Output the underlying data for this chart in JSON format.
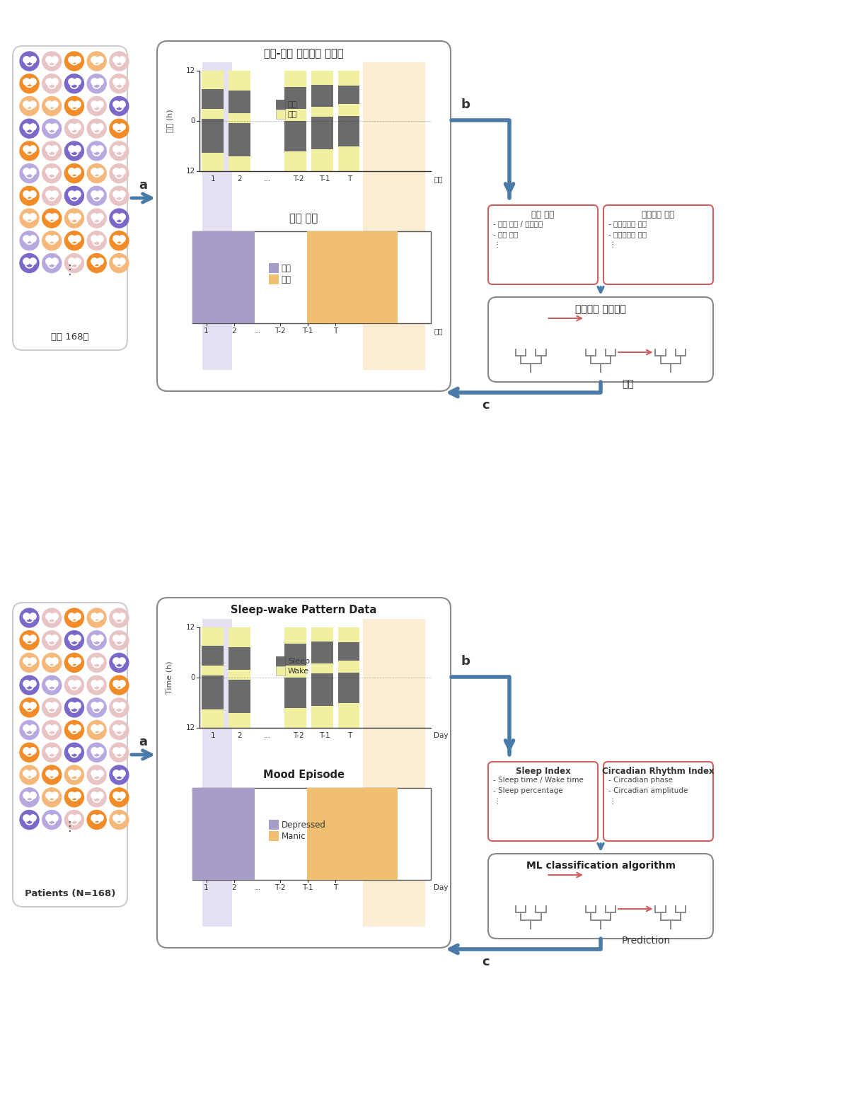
{
  "bg_color": "#ffffff",
  "purple_dark": "#7B68C8",
  "purple_light": "#B8A8E0",
  "orange_dark": "#F28C28",
  "orange_light": "#F5B87A",
  "pink_light": "#E8C4C4",
  "arrow_color": "#4A7BA8",
  "sleep_color": "#6B6B6B",
  "wake_color": "#F0F0A0",
  "depressed_color": "#A89CC8",
  "manic_color": "#F0C070",
  "highlight_purple": "#D0C8E8",
  "highlight_orange": "#F5D8A0",
  "index_box_border": "#D06060",
  "tree_color": "#888888",
  "tree_arrow": "#D06060",
  "box_outline": "#888888",
  "patient_box_outline": "#cccccc",
  "ko_sleep_wake_title": "수면-각성 웨어러블 데이터",
  "ko_time_label": "시간 (h)",
  "ko_sleep": "수면",
  "ko_wake": "각성",
  "ko_depressed": "울증",
  "ko_manic": "조증",
  "ko_mood_title": "기분 삼화",
  "ko_patient": "환자 168명",
  "ko_sleep_index": "수면 지표",
  "ko_circadian_index": "생체리든 지표",
  "ko_sleep_items": "- 수면 시간 / 기상시간\n- 수면 비율\n⋮",
  "ko_circadian_items": "- 생체리든의 위상\n- 생체리든의 진폭\n⋮",
  "ko_ml": "머신러닝 알고리즘",
  "ko_predict": "예측",
  "en_sleep_wake_title": "Sleep-wake Pattern Data",
  "en_time_label": "Time (h)",
  "en_sleep": "Sleep",
  "en_wake": "Wake",
  "en_depressed": "Depressed",
  "en_manic": "Manic",
  "en_mood_title": "Mood Episode",
  "en_patient": "Patients (N=168)",
  "en_sleep_index": "Sleep Index",
  "en_circadian_index": "Circadian Rhythm Index",
  "en_sleep_items": "- Sleep time / Wake time\n- Sleep percentage\n⋮",
  "en_circadian_items": "- Circadian phase\n- Circadian amplitude\n⋮",
  "en_ml": "ML classification algorithm",
  "en_predict": "Prediction",
  "day_label_ko": "날짜",
  "day_label_en": "Day",
  "label_a": "a",
  "label_b": "b",
  "label_c": "c"
}
